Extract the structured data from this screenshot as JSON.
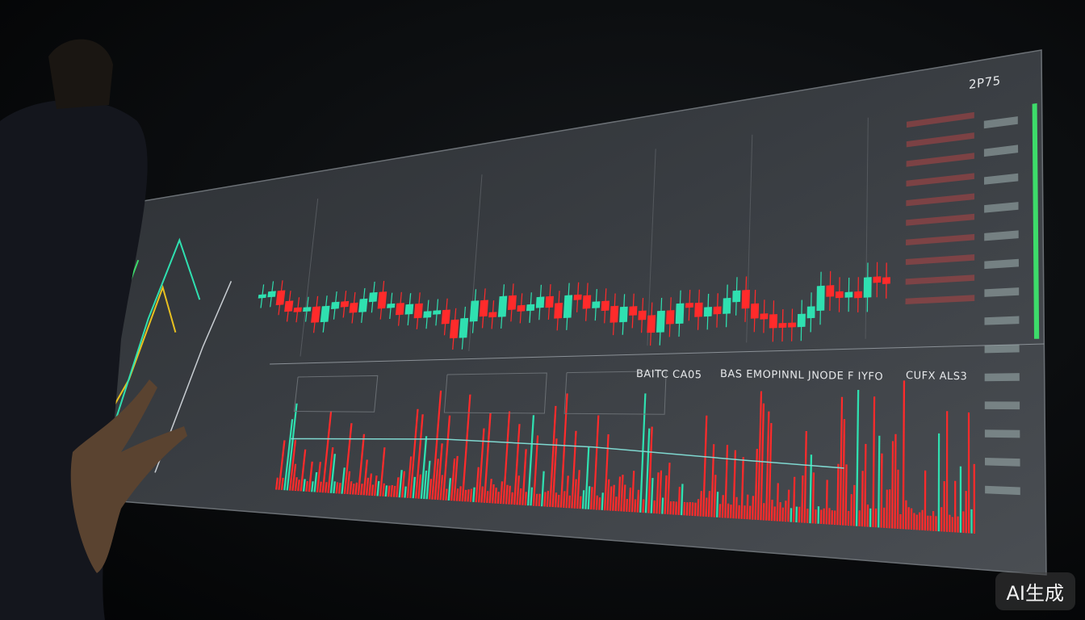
{
  "screen": {
    "top_right_value": "2P75",
    "lower_titles": [
      "BAITC CA05",
      "BAS EMOPINNL JNODE F IYFO",
      "CUFX ALS3"
    ]
  },
  "colors": {
    "background": "#050607",
    "panel": "#3a3d41",
    "up": "#2fe0b0",
    "down": "#ff2b2b",
    "accent_green": "#3ddc6a",
    "accent_yellow": "#e8c020",
    "line": "#7fd8d0"
  },
  "watermark": "AI生成"
}
